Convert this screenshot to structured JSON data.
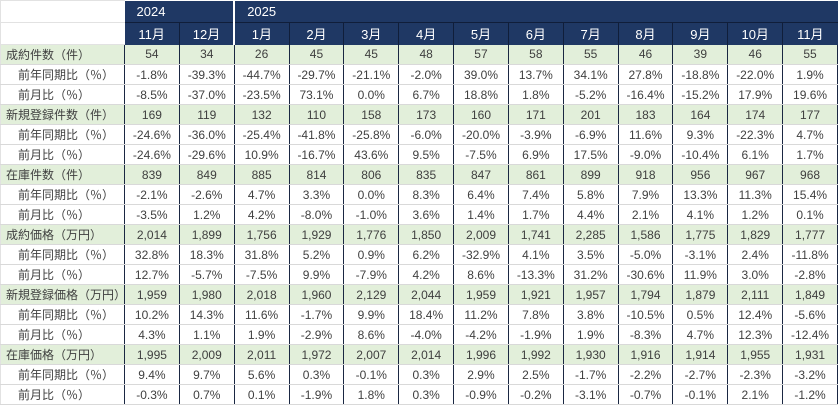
{
  "colors": {
    "header_bg": "#1f3864",
    "header_text": "#ffffff",
    "category_row_bg": "#e2efda",
    "vertical_grid": "#1a2742",
    "horizontal_grid": "#d9d9d9",
    "body_text": "#3f3f3f"
  },
  "chart_data": {
    "type": "table",
    "year_groups": [
      {
        "label": "2024",
        "span": 2
      },
      {
        "label": "2025",
        "span": 11
      }
    ],
    "month_headers": [
      "11月",
      "12月",
      "1月",
      "2月",
      "3月",
      "4月",
      "5月",
      "6月",
      "7月",
      "8月",
      "9月",
      "10月",
      "11月"
    ],
    "rows": [
      {
        "label": "成約件数（件）",
        "type": "category",
        "values": [
          "54",
          "34",
          "26",
          "45",
          "45",
          "48",
          "57",
          "58",
          "55",
          "46",
          "39",
          "46",
          "55"
        ]
      },
      {
        "label": "前年同期比（％）",
        "type": "sub",
        "values": [
          "-1.8%",
          "-39.3%",
          "-44.7%",
          "-29.7%",
          "-21.1%",
          "-2.0%",
          "39.0%",
          "13.7%",
          "34.1%",
          "27.8%",
          "-18.8%",
          "-22.0%",
          "1.9%"
        ]
      },
      {
        "label": "前月比（％）",
        "type": "sub",
        "values": [
          "-8.5%",
          "-37.0%",
          "-23.5%",
          "73.1%",
          "0.0%",
          "6.7%",
          "18.8%",
          "1.8%",
          "-5.2%",
          "-16.4%",
          "-15.2%",
          "17.9%",
          "19.6%"
        ]
      },
      {
        "label": "新規登録件数（件）",
        "type": "category",
        "values": [
          "169",
          "119",
          "132",
          "110",
          "158",
          "173",
          "160",
          "171",
          "201",
          "183",
          "164",
          "174",
          "177"
        ]
      },
      {
        "label": "前年同期比（％）",
        "type": "sub",
        "values": [
          "-24.6%",
          "-36.0%",
          "-25.4%",
          "-41.8%",
          "-25.8%",
          "-6.0%",
          "-20.0%",
          "-3.9%",
          "-6.9%",
          "11.6%",
          "9.3%",
          "-22.3%",
          "4.7%"
        ]
      },
      {
        "label": "前月比（％）",
        "type": "sub",
        "values": [
          "-24.6%",
          "-29.6%",
          "10.9%",
          "-16.7%",
          "43.6%",
          "9.5%",
          "-7.5%",
          "6.9%",
          "17.5%",
          "-9.0%",
          "-10.4%",
          "6.1%",
          "1.7%"
        ]
      },
      {
        "label": "在庫件数（件）",
        "type": "category",
        "values": [
          "839",
          "849",
          "885",
          "814",
          "806",
          "835",
          "847",
          "861",
          "899",
          "918",
          "956",
          "967",
          "968"
        ]
      },
      {
        "label": "前年同期比（％）",
        "type": "sub",
        "values": [
          "-2.1%",
          "-2.6%",
          "4.7%",
          "3.3%",
          "0.0%",
          "8.3%",
          "6.4%",
          "7.4%",
          "5.8%",
          "7.9%",
          "13.3%",
          "11.3%",
          "15.4%"
        ]
      },
      {
        "label": "前月比（％）",
        "type": "sub",
        "values": [
          "-3.5%",
          "1.2%",
          "4.2%",
          "-8.0%",
          "-1.0%",
          "3.6%",
          "1.4%",
          "1.7%",
          "4.4%",
          "2.1%",
          "4.1%",
          "1.2%",
          "0.1%"
        ]
      },
      {
        "label": "成約価格（万円）",
        "type": "category",
        "values": [
          "2,014",
          "1,899",
          "1,756",
          "1,929",
          "1,776",
          "1,850",
          "2,009",
          "1,741",
          "2,285",
          "1,586",
          "1,775",
          "1,829",
          "1,777"
        ]
      },
      {
        "label": "前年同期比（％）",
        "type": "sub",
        "values": [
          "32.8%",
          "18.3%",
          "31.8%",
          "5.2%",
          "0.9%",
          "6.2%",
          "-32.9%",
          "4.1%",
          "3.5%",
          "-5.0%",
          "-3.1%",
          "2.4%",
          "-11.8%"
        ]
      },
      {
        "label": "前月比（％）",
        "type": "sub",
        "values": [
          "12.7%",
          "-5.7%",
          "-7.5%",
          "9.9%",
          "-7.9%",
          "4.2%",
          "8.6%",
          "-13.3%",
          "31.2%",
          "-30.6%",
          "11.9%",
          "3.0%",
          "-2.8%"
        ]
      },
      {
        "label": "新規登録価格（万円）",
        "type": "category",
        "values": [
          "1,959",
          "1,980",
          "2,018",
          "1,960",
          "2,129",
          "2,044",
          "1,959",
          "1,921",
          "1,957",
          "1,794",
          "1,879",
          "2,111",
          "1,849"
        ]
      },
      {
        "label": "前年同期比（％）",
        "type": "sub",
        "values": [
          "10.2%",
          "14.3%",
          "11.6%",
          "-1.7%",
          "9.9%",
          "18.4%",
          "11.2%",
          "7.8%",
          "3.8%",
          "-10.5%",
          "0.5%",
          "12.4%",
          "-5.6%"
        ]
      },
      {
        "label": "前月比（％）",
        "type": "sub",
        "values": [
          "4.3%",
          "1.1%",
          "1.9%",
          "-2.9%",
          "8.6%",
          "-4.0%",
          "-4.2%",
          "-1.9%",
          "1.9%",
          "-8.3%",
          "4.7%",
          "12.3%",
          "-12.4%"
        ]
      },
      {
        "label": "在庫価格（万円）",
        "type": "category",
        "values": [
          "1,995",
          "2,009",
          "2,011",
          "1,972",
          "2,007",
          "2,014",
          "1,996",
          "1,992",
          "1,930",
          "1,916",
          "1,914",
          "1,955",
          "1,931"
        ]
      },
      {
        "label": "前年同期比（％）",
        "type": "sub",
        "values": [
          "9.4%",
          "9.7%",
          "5.6%",
          "0.3%",
          "-0.1%",
          "0.3%",
          "2.9%",
          "2.5%",
          "-1.7%",
          "-2.2%",
          "-2.7%",
          "-2.3%",
          "-3.2%"
        ]
      },
      {
        "label": "前月比（％）",
        "type": "sub",
        "values": [
          "-0.3%",
          "0.7%",
          "0.1%",
          "-1.9%",
          "1.8%",
          "0.3%",
          "-0.9%",
          "-0.2%",
          "-3.1%",
          "-0.7%",
          "-0.1%",
          "2.1%",
          "-1.2%"
        ]
      }
    ]
  }
}
